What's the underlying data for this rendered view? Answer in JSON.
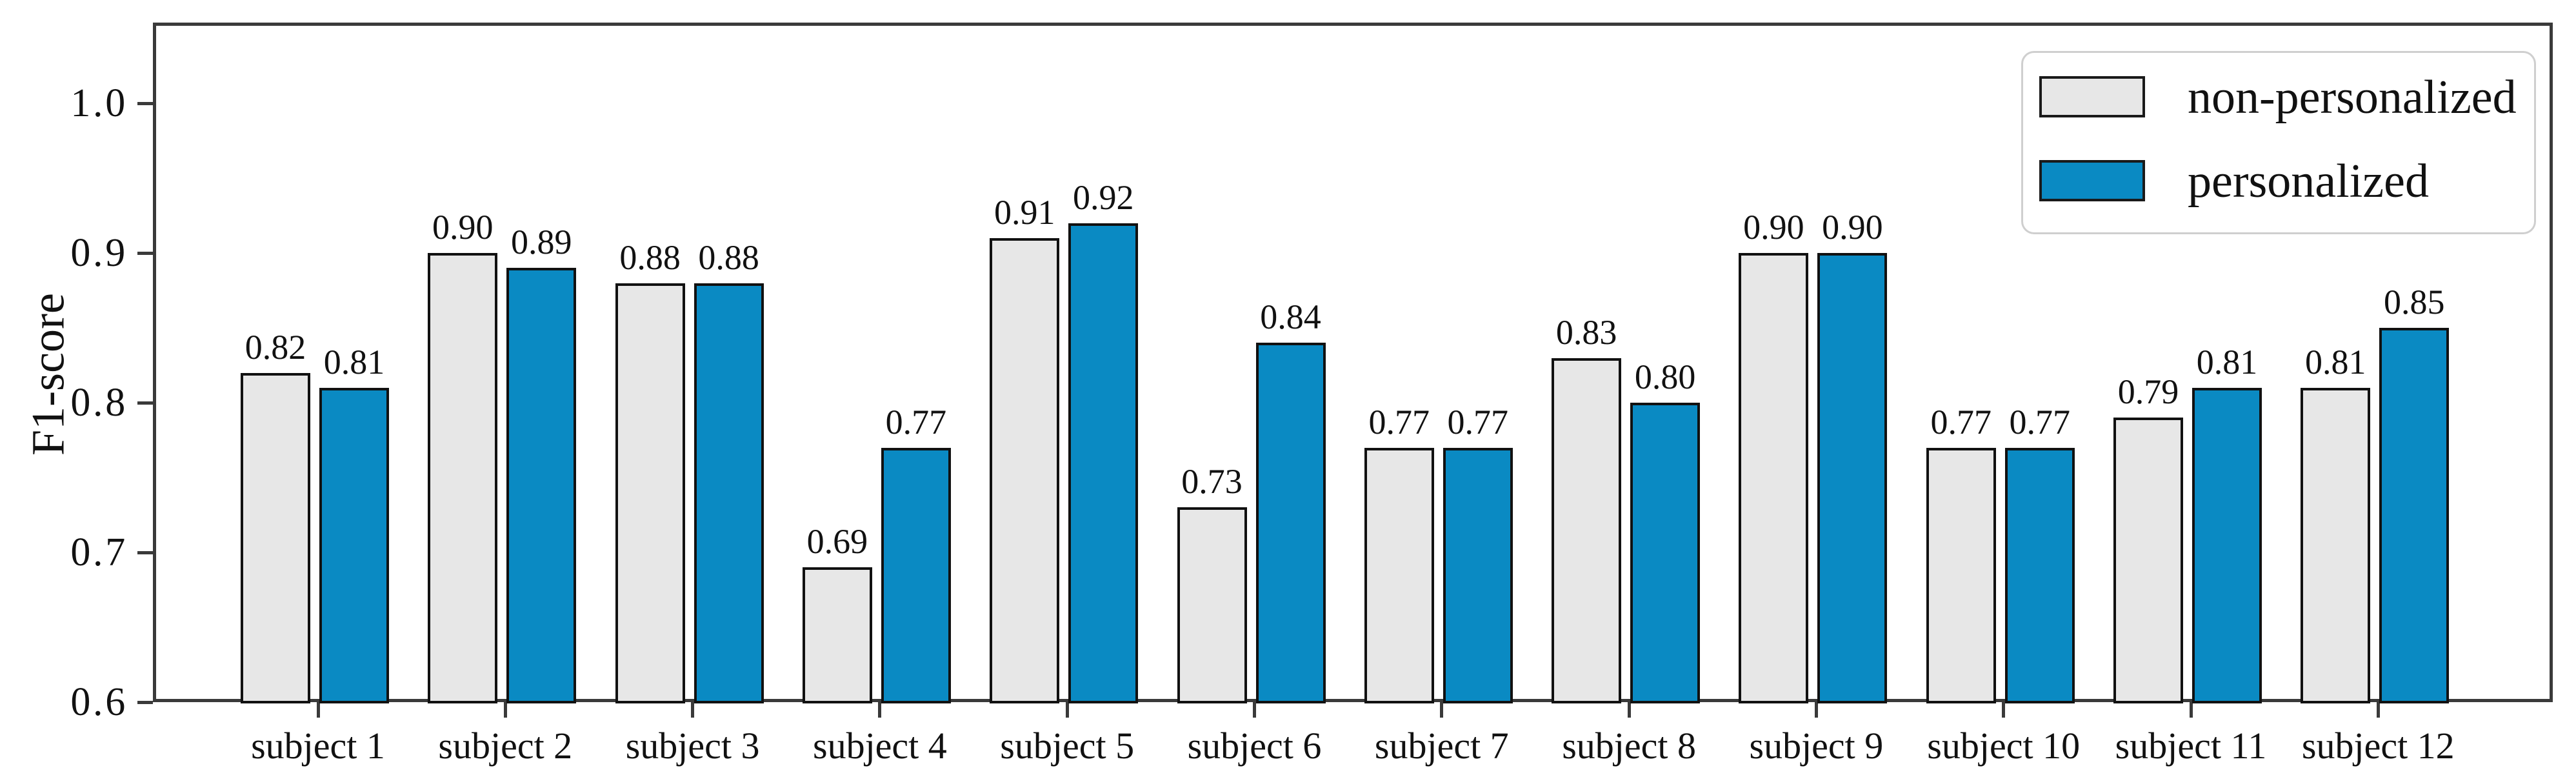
{
  "chart_data": {
    "type": "bar",
    "categories": [
      "subject 1",
      "subject 2",
      "subject 3",
      "subject 4",
      "subject 5",
      "subject 6",
      "subject 7",
      "subject 8",
      "subject 9",
      "subject 10",
      "subject 11",
      "subject 12"
    ],
    "series": [
      {
        "name": "non-personalized",
        "color": "#e7e7e7",
        "values": [
          0.82,
          0.9,
          0.88,
          0.69,
          0.91,
          0.73,
          0.77,
          0.83,
          0.9,
          0.77,
          0.79,
          0.81
        ]
      },
      {
        "name": "personalized",
        "color": "#0a8ac3",
        "values": [
          0.81,
          0.89,
          0.88,
          0.77,
          0.92,
          0.84,
          0.77,
          0.8,
          0.9,
          0.77,
          0.81,
          0.85
        ]
      }
    ],
    "title": "",
    "xlabel": "",
    "ylabel": "F1-score",
    "ylim": [
      0.6,
      1.054
    ],
    "yticks": [
      0.6,
      0.7,
      0.8,
      0.9,
      1.0
    ],
    "ytick_labels": [
      "0.6",
      "0.7",
      "0.8",
      "0.9",
      "1.0"
    ],
    "bar_value_labels": true,
    "grid": false,
    "legend_position": "upper right",
    "bar_edge_color": "#111111",
    "axis_color": "#3a3a3a"
  }
}
